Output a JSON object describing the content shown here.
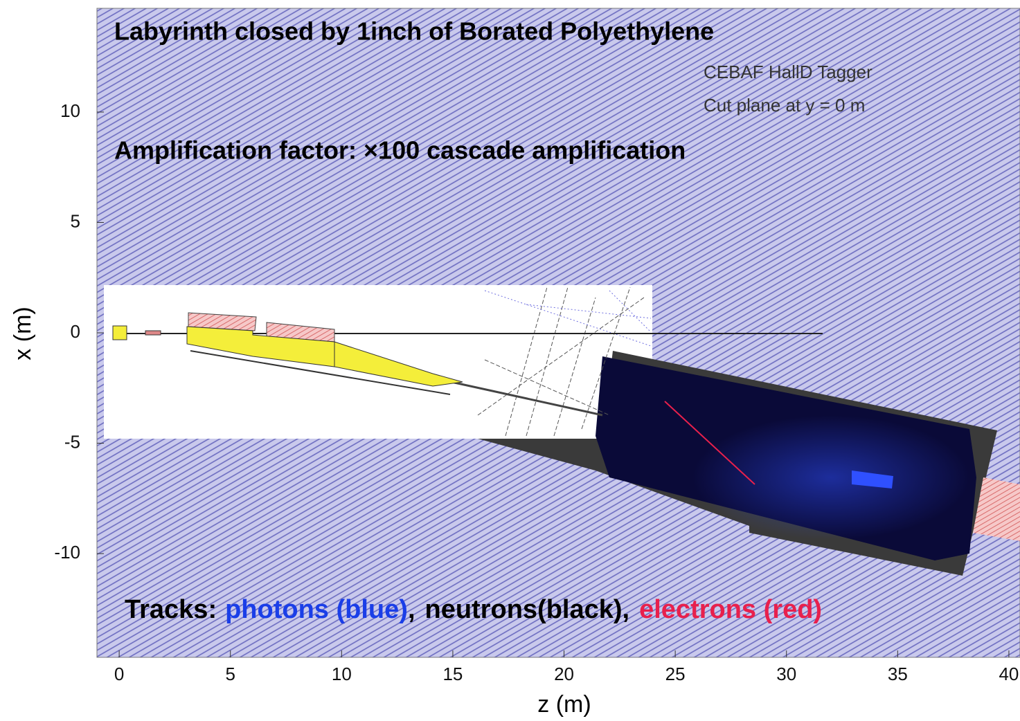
{
  "chart_data": {
    "type": "geometry",
    "title": "Labyrinth closed by 1inch of Borated Polyethylene",
    "annotations": [
      "CEBAF HallD Tagger",
      "Cut plane at y = 0 m",
      "Amplification factor: ×100 cascade amplification"
    ],
    "x_label": "z (m)",
    "y_label": "x (m)",
    "xlim": [
      -1,
      40.5
    ],
    "ylim": [
      -14.7,
      14.7
    ],
    "xticks": [
      0,
      5,
      10,
      15,
      20,
      25,
      30,
      35,
      40
    ],
    "yticks": [
      -10,
      -5,
      0,
      5,
      10
    ],
    "legend": {
      "prefix": "Tracks:",
      "separator": ",",
      "series": [
        {
          "name": "photons (blue)",
          "color": "#1a3ee8"
        },
        {
          "name": "neutrons(black)",
          "color": "#000000"
        },
        {
          "name": "electrons (red)",
          "color": "#e8204c"
        }
      ]
    }
  }
}
